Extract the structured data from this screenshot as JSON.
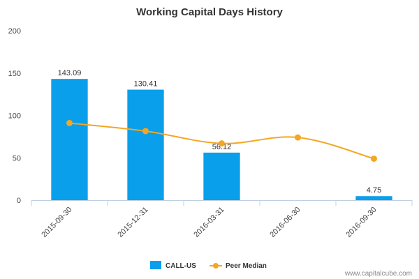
{
  "chart_data": {
    "type": "bar",
    "title": "Working Capital Days History",
    "categories": [
      "2015-09-30",
      "2015-12-31",
      "2016-03-31",
      "2016-06-30",
      "2016-09-30"
    ],
    "ylim": [
      0,
      200
    ],
    "yticks": [
      0,
      50,
      100,
      150,
      200
    ],
    "grid": false,
    "legend_position": "bottom-center",
    "series": [
      {
        "name": "CALL-US",
        "type": "bar",
        "color": "#0a9fea",
        "values": [
          143.09,
          130.41,
          56.12,
          null,
          4.75
        ],
        "labels": [
          "143.09",
          "130.41",
          "56.12",
          "",
          "4.75"
        ]
      },
      {
        "name": "Peer Median",
        "type": "line",
        "color": "#f5a623",
        "values": [
          91,
          81.5,
          67,
          74,
          49
        ]
      }
    ]
  },
  "credit": "www.capitalcube.com"
}
